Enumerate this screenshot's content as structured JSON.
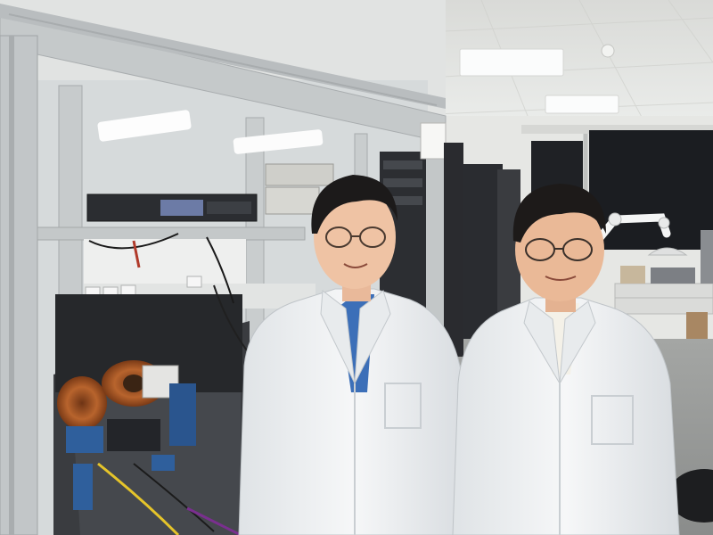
{
  "scene": {
    "kind": "photograph",
    "setting": "laboratory",
    "colors": {
      "ceiling": "#e4e5e2",
      "wall": "#e9e9e6",
      "floor": "#9a9b98",
      "frame": "#c7cbcc",
      "lab_coat": "#f1f3f4",
      "coil_copper": "#a0522d",
      "optics_blue": "#2f5f9c",
      "window_dark": "#1c1e22"
    },
    "people_count": 2
  }
}
